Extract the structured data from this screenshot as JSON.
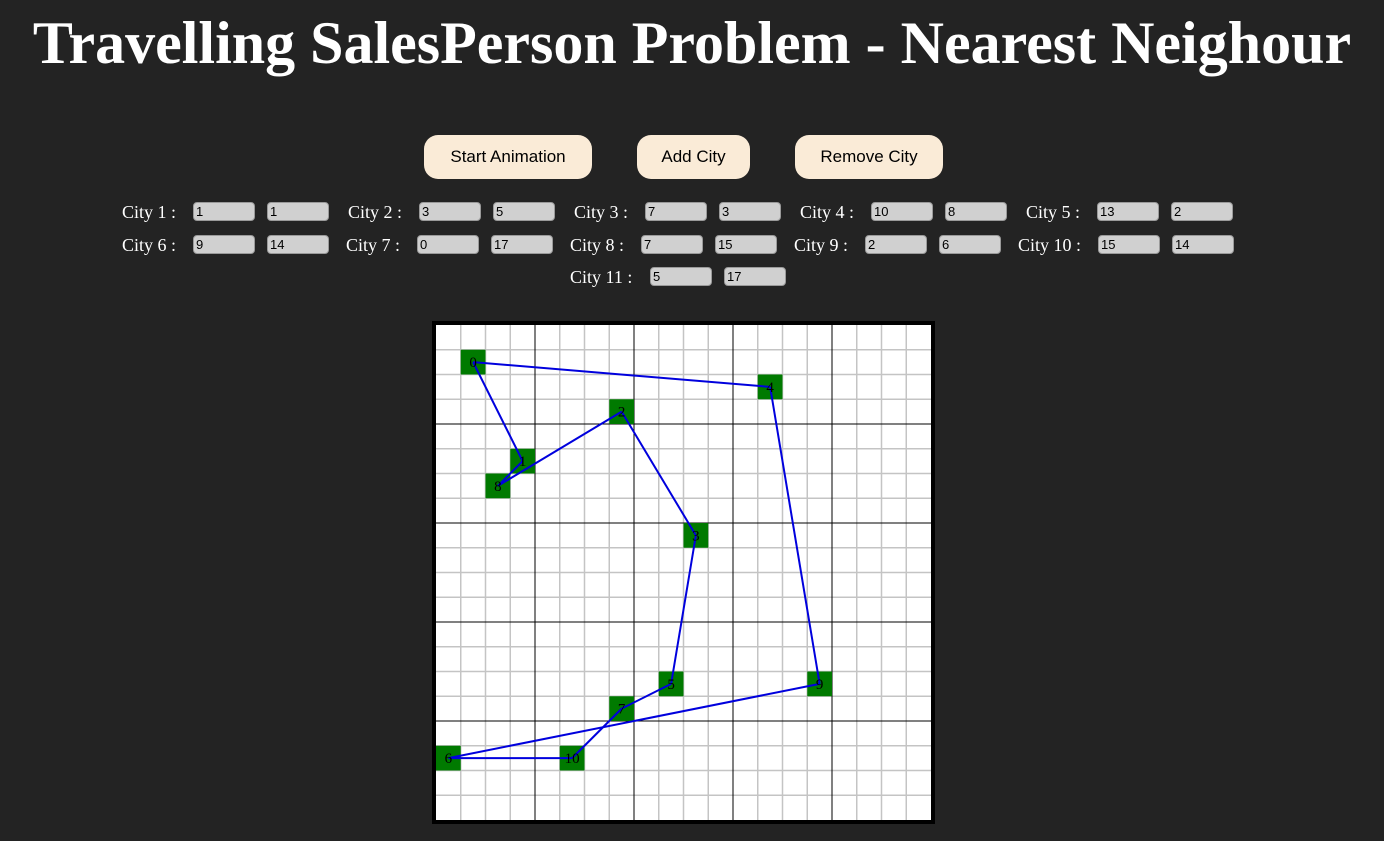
{
  "title": "Travelling SalesPerson Problem - Nearest Neighour",
  "buttons": {
    "start": "Start Animation",
    "add": "Add City",
    "remove": "Remove City"
  },
  "cities": [
    {
      "label": "City 1 :",
      "x": "1",
      "y": "1"
    },
    {
      "label": "City 2 :",
      "x": "3",
      "y": "5"
    },
    {
      "label": "City 3 :",
      "x": "7",
      "y": "3"
    },
    {
      "label": "City 4 :",
      "x": "10",
      "y": "8"
    },
    {
      "label": "City 5 :",
      "x": "13",
      "y": "2"
    },
    {
      "label": "City 6 :",
      "x": "9",
      "y": "14"
    },
    {
      "label": "City 7 :",
      "x": "0",
      "y": "17"
    },
    {
      "label": "City 8 :",
      "x": "7",
      "y": "15"
    },
    {
      "label": "City 9 :",
      "x": "2",
      "y": "6"
    },
    {
      "label": "City 10 :",
      "x": "15",
      "y": "14"
    },
    {
      "label": "City 11 :",
      "x": "5",
      "y": "17"
    }
  ],
  "board": {
    "nodes": [
      {
        "label": "0",
        "gx": 1,
        "gy": 1
      },
      {
        "label": "1",
        "gx": 3,
        "gy": 5
      },
      {
        "label": "2",
        "gx": 7,
        "gy": 3
      },
      {
        "label": "3",
        "gx": 10,
        "gy": 8
      },
      {
        "label": "4",
        "gx": 13,
        "gy": 2
      },
      {
        "label": "5",
        "gx": 9,
        "gy": 14
      },
      {
        "label": "6",
        "gx": 0,
        "gy": 17
      },
      {
        "label": "7",
        "gx": 7,
        "gy": 15
      },
      {
        "label": "8",
        "gx": 2,
        "gy": 6
      },
      {
        "label": "9",
        "gx": 15,
        "gy": 14
      },
      {
        "label": "10",
        "gx": 5,
        "gy": 17
      }
    ],
    "tour": [
      0,
      1,
      8,
      2,
      3,
      5,
      7,
      10,
      6,
      9,
      4,
      0
    ],
    "grid_cells": 20,
    "grid_major_every": 4,
    "colors": {
      "node_fill": "#007a00",
      "tour_line": "#0000dd",
      "grid_minor": "#c4c4c4",
      "grid_major": "#000000"
    }
  }
}
